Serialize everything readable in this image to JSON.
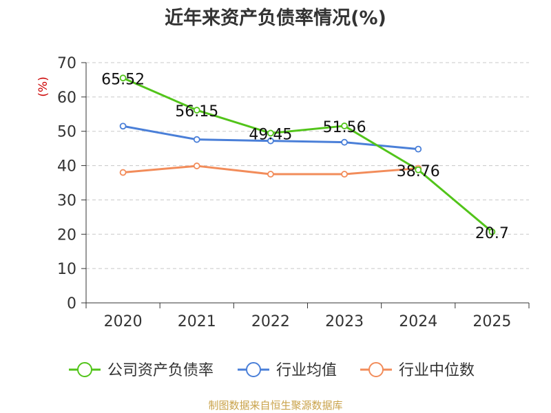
{
  "chart_data": {
    "type": "line",
    "title": "近年来资产负债率情况(%)",
    "ylabel": "(%)",
    "xlabel": "",
    "categories": [
      "2020",
      "2021",
      "2022",
      "2023",
      "2024",
      "2025"
    ],
    "ylim": [
      0,
      70
    ],
    "yticks": [
      0,
      10,
      20,
      30,
      40,
      50,
      60,
      70
    ],
    "grid": true,
    "legend_position": "bottom",
    "series": [
      {
        "name": "公司资产负债率",
        "color": "#52c41a",
        "values": [
          65.52,
          56.15,
          49.45,
          51.56,
          38.76,
          20.7
        ],
        "labels": [
          "65.52",
          "56.15",
          "49.45",
          "51.56",
          "38.76",
          "20.7"
        ]
      },
      {
        "name": "行业均值",
        "color": "#4a7fd8",
        "values": [
          51.5,
          47.6,
          47.2,
          46.8,
          44.8,
          null
        ]
      },
      {
        "name": "行业中位数",
        "color": "#f28c5a",
        "values": [
          38.0,
          39.9,
          37.5,
          37.5,
          39.2,
          null
        ]
      }
    ]
  },
  "footer": {
    "source": "制图数据来自恒生聚源数据库"
  }
}
